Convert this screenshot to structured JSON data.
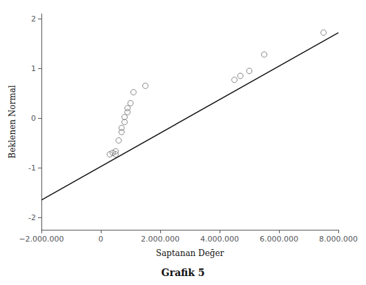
{
  "chart_data": {
    "type": "scatter",
    "title": "Grafik 5",
    "xlabel": "Saptanan Değer",
    "ylabel": "Beklenen Normal",
    "series": [
      {
        "type": "line",
        "color": "#111111",
        "line_style": "solid",
        "x": [
          -2000000,
          8000000
        ],
        "values": [
          -1.65,
          1.72
        ]
      },
      {
        "type": "scatter",
        "color": "#666666",
        "marker": "hollow",
        "x": [
          300000,
          400000,
          500000,
          500000,
          600000,
          700000,
          700000,
          800000,
          800000,
          900000,
          900000,
          1000000,
          1100000,
          1500000,
          4500000,
          4700000,
          5000000,
          5500000,
          7500000
        ],
        "values": [
          -0.73,
          -0.7,
          -0.73,
          -0.67,
          -0.45,
          -0.28,
          -0.2,
          -0.08,
          0.02,
          0.12,
          0.2,
          0.3,
          0.52,
          0.65,
          0.77,
          0.85,
          0.95,
          1.28,
          1.72
        ]
      }
    ],
    "xlim": [
      -2000000,
      8000000
    ],
    "ylim": [
      -2.25,
      2.1
    ],
    "xticks": [
      {
        "value": -2000000,
        "label": "−2.000.000"
      },
      0,
      {
        "value": 2000000,
        "label": "2.000.000"
      },
      {
        "value": 4000000,
        "label": "4.000.000"
      },
      {
        "value": 6000000,
        "label": "6.000.000"
      },
      {
        "value": 8000000,
        "label": "8.000.000"
      }
    ],
    "yticks": [
      -2,
      -1,
      0,
      1,
      2
    ],
    "grid": false
  }
}
